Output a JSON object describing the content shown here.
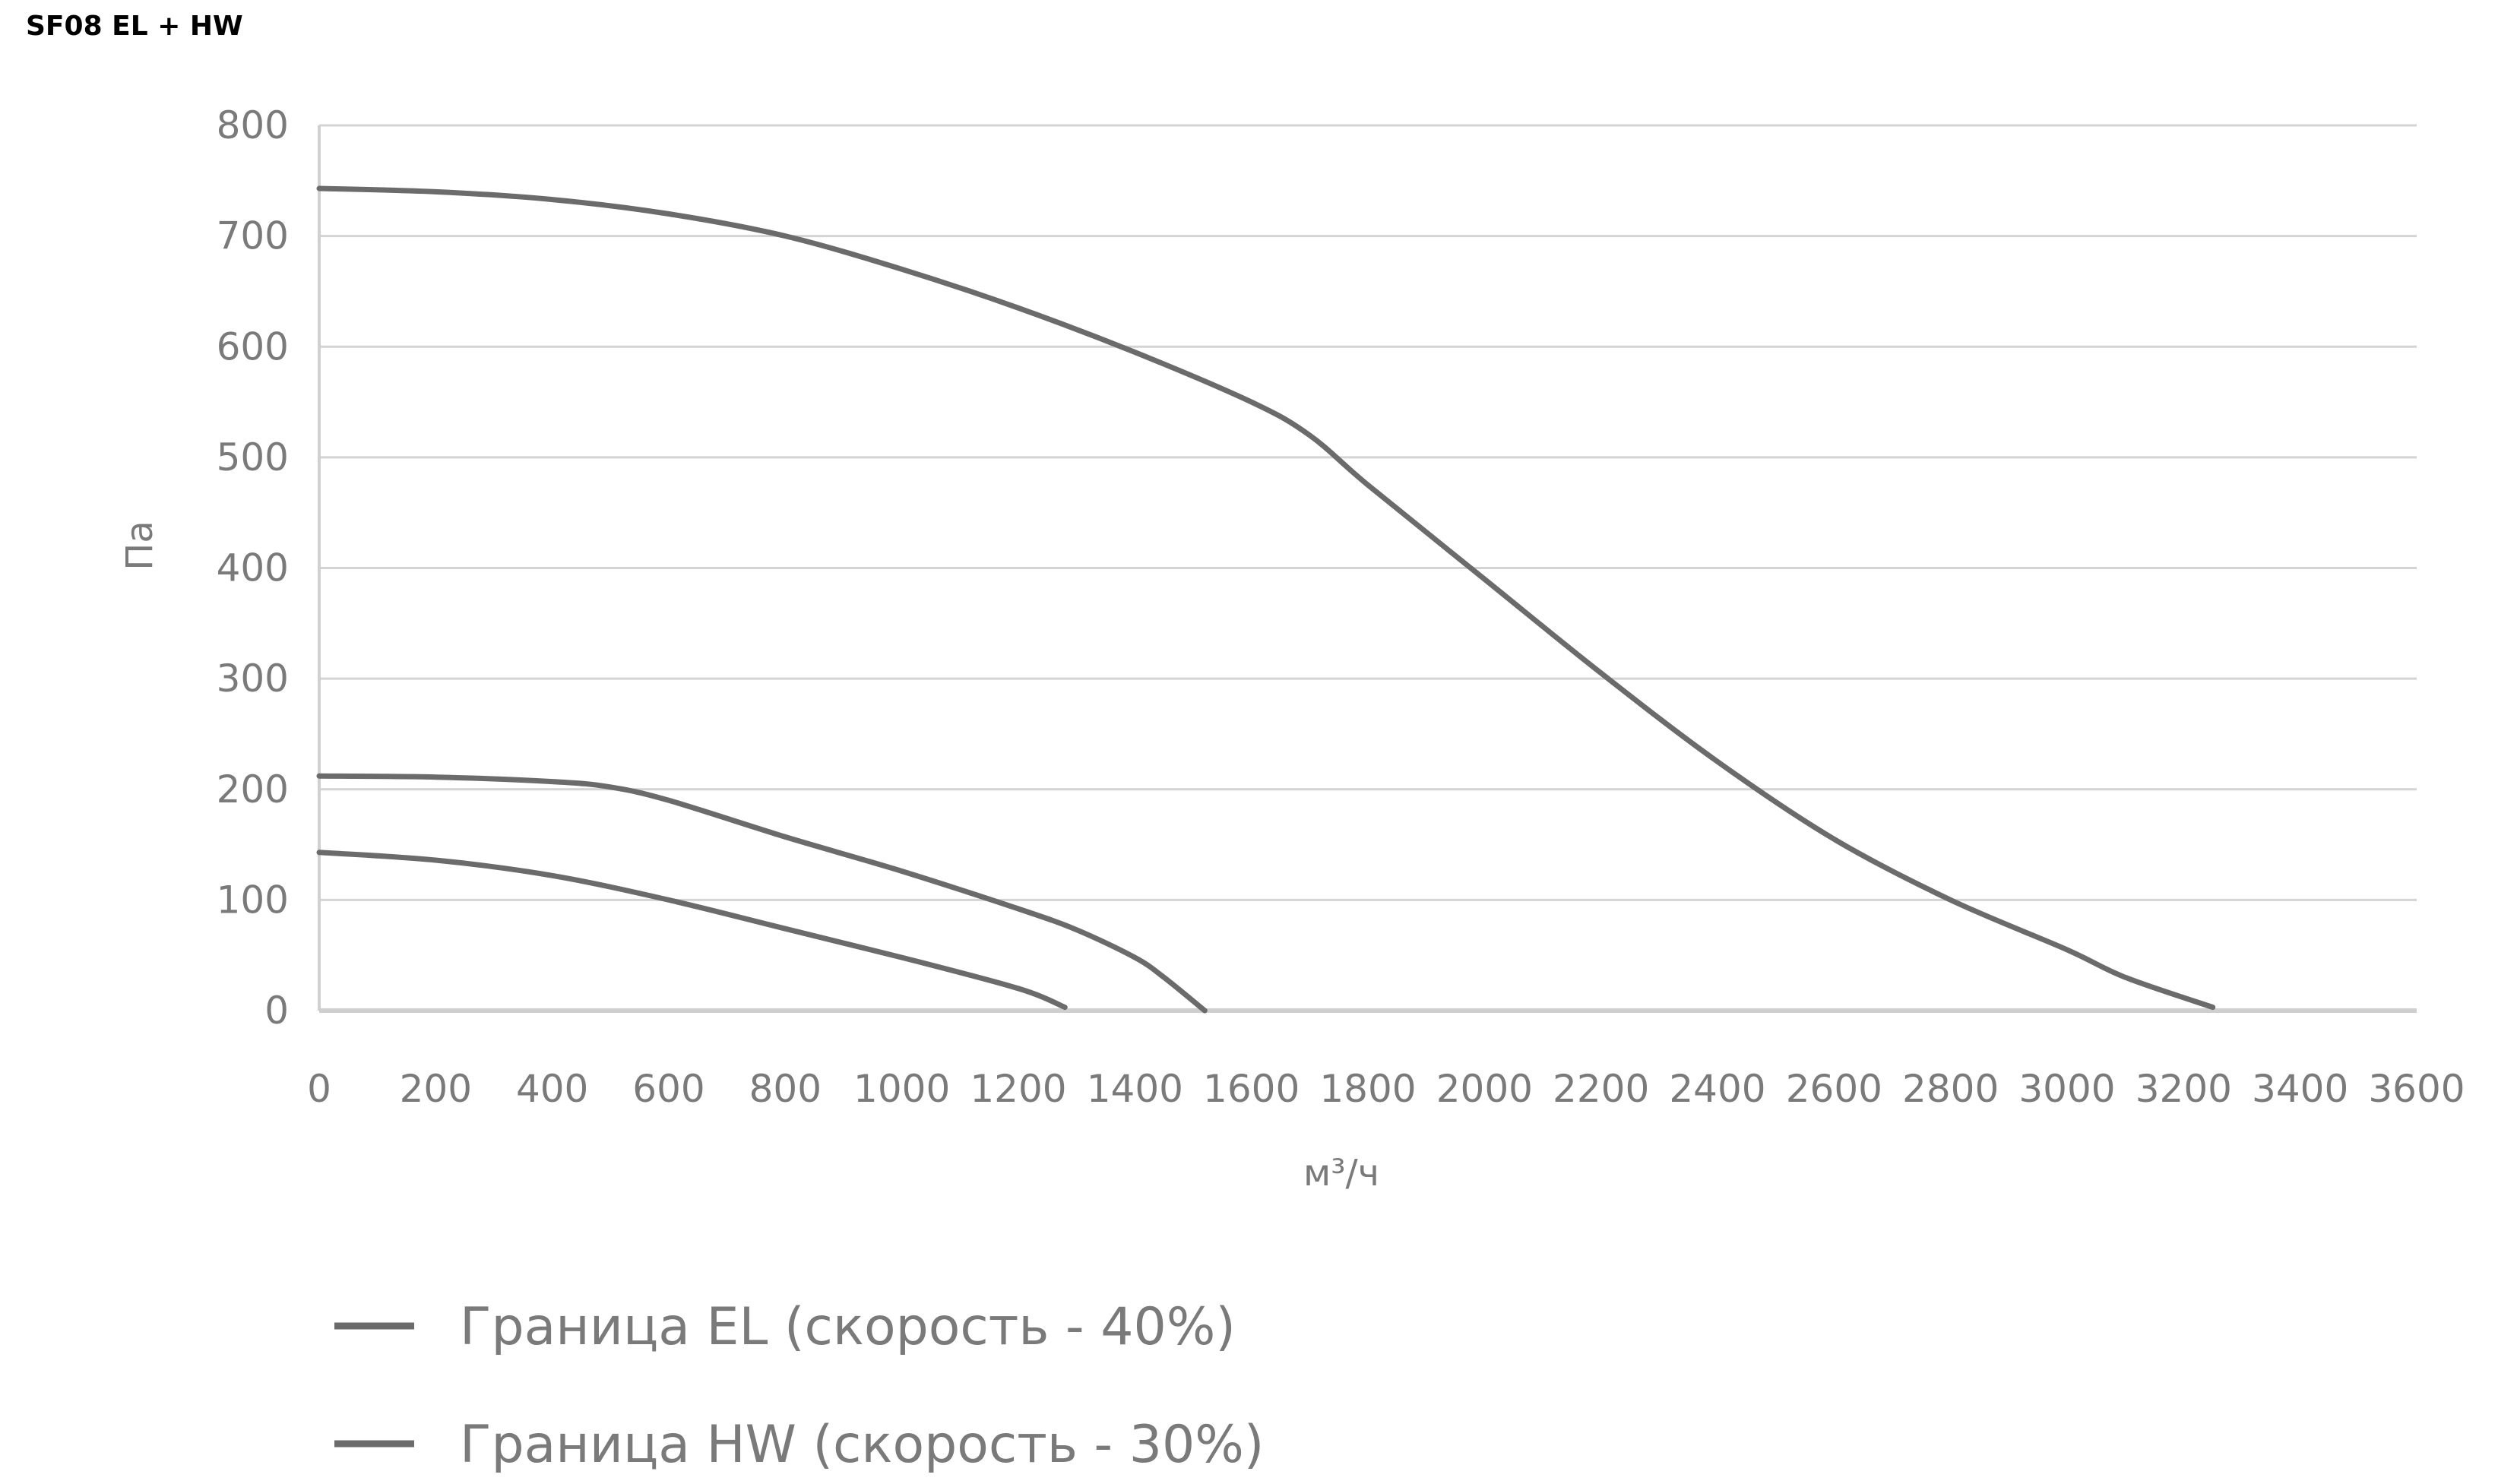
{
  "chart_data": {
    "type": "line",
    "title": "SF08 EL + HW",
    "xlabel": "м³/ч",
    "ylabel": "Па",
    "xlim": [
      0,
      3600
    ],
    "ylim": [
      0,
      800
    ],
    "x_ticks": [
      0,
      200,
      400,
      600,
      800,
      1000,
      1200,
      1400,
      1600,
      1800,
      2000,
      2200,
      2400,
      2600,
      2800,
      3000,
      3200,
      3400,
      3600
    ],
    "y_ticks": [
      0,
      100,
      200,
      300,
      400,
      500,
      600,
      700,
      800
    ],
    "grid": true,
    "legend_position": "bottom-left",
    "line_color": "#6b6b6b",
    "legend": [
      "Граница EL (скорость - 40%)",
      "Граница HW (скорость - 30%)"
    ],
    "series": [
      {
        "points": [
          [
            0,
            743
          ],
          [
            200,
            740
          ],
          [
            400,
            733
          ],
          [
            600,
            720
          ],
          [
            800,
            700
          ],
          [
            1000,
            670
          ],
          [
            1200,
            635
          ],
          [
            1400,
            595
          ],
          [
            1600,
            550
          ],
          [
            1700,
            520
          ],
          [
            1800,
            475
          ],
          [
            2000,
            390
          ],
          [
            2200,
            305
          ],
          [
            2400,
            225
          ],
          [
            2600,
            155
          ],
          [
            2800,
            100
          ],
          [
            3000,
            55
          ],
          [
            3100,
            30
          ],
          [
            3250,
            3
          ]
        ]
      },
      {
        "points": [
          [
            0,
            212
          ],
          [
            200,
            211
          ],
          [
            400,
            207
          ],
          [
            500,
            202
          ],
          [
            600,
            190
          ],
          [
            800,
            157
          ],
          [
            1000,
            126
          ],
          [
            1200,
            92
          ],
          [
            1300,
            73
          ],
          [
            1400,
            48
          ],
          [
            1450,
            30
          ],
          [
            1520,
            0
          ]
        ]
      },
      {
        "points": [
          [
            0,
            143
          ],
          [
            200,
            136
          ],
          [
            400,
            122
          ],
          [
            600,
            100
          ],
          [
            800,
            74
          ],
          [
            1000,
            48
          ],
          [
            1200,
            20
          ],
          [
            1280,
            3
          ]
        ]
      }
    ]
  }
}
